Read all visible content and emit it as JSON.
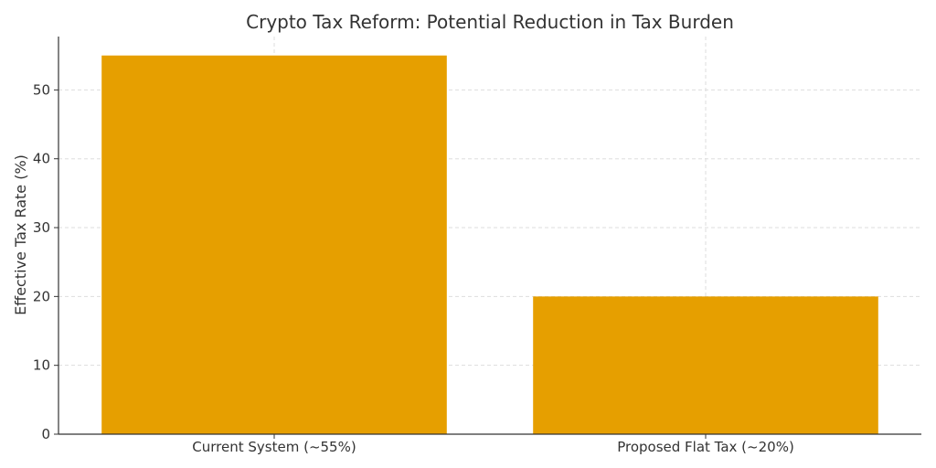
{
  "chart_data": {
    "type": "bar",
    "title": "Crypto Tax Reform: Potential Reduction in Tax Burden",
    "xlabel": "",
    "ylabel": "Effective Tax Rate (%)",
    "categories": [
      "Current System (~55%)",
      "Proposed Flat Tax (~20%)"
    ],
    "values": [
      55,
      20
    ],
    "ylim": [
      0,
      57.75
    ],
    "yticks": [
      0,
      10,
      20,
      30,
      40,
      50
    ],
    "grid": true,
    "bar_color": "#E69F00",
    "grid_color": "#dddddd",
    "axis_color": "#333333"
  }
}
